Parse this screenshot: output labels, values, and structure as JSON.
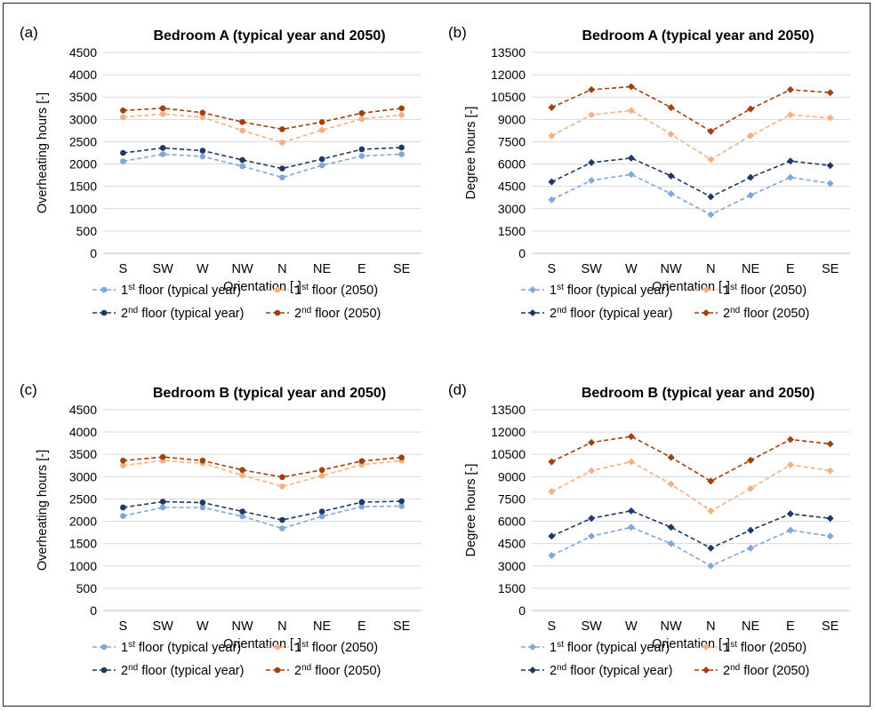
{
  "colors": {
    "floor1_typical": "#7fa7dc",
    "floor1_2050": "#f4b183",
    "floor2_typical": "#1f3864",
    "floor2_2050": "#a0410d",
    "grid": "#d9d9d9",
    "axis": "#bfbfbf"
  },
  "chart_data": [
    {
      "type": "line",
      "panel_label": "(a)",
      "title": "Bedroom A (typical year and 2050)",
      "xlabel": "Orientation [-]",
      "ylabel": "Overheating hours [-]",
      "categories": [
        "S",
        "SW",
        "W",
        "NW",
        "N",
        "NE",
        "E",
        "SE"
      ],
      "ylim": [
        0,
        4500
      ],
      "yticks": [
        0,
        500,
        1000,
        1500,
        2000,
        2500,
        3000,
        3500,
        4000,
        4500
      ],
      "grid": true,
      "marker": "circle",
      "legend_position": "bottom",
      "series": [
        {
          "name": "1st floor (typical year)",
          "name_parts": [
            "1",
            "st",
            " floor (typical year)"
          ],
          "color_key": "floor1_typical",
          "values": [
            2060,
            2220,
            2170,
            1950,
            1700,
            1970,
            2180,
            2220
          ]
        },
        {
          "name": "1st floor (2050)",
          "name_parts": [
            "1",
            "st",
            " floor (2050)"
          ],
          "color_key": "floor1_2050",
          "values": [
            3050,
            3120,
            3050,
            2750,
            2480,
            2760,
            3010,
            3100
          ]
        },
        {
          "name": "2nd floor (typical year)",
          "name_parts": [
            "2",
            "nd",
            " floor (typical year)"
          ],
          "color_key": "floor2_typical",
          "values": [
            2250,
            2360,
            2300,
            2090,
            1900,
            2110,
            2330,
            2370
          ]
        },
        {
          "name": "2nd floor (2050)",
          "name_parts": [
            "2",
            "nd",
            " floor (2050)"
          ],
          "color_key": "floor2_2050",
          "values": [
            3200,
            3250,
            3150,
            2940,
            2780,
            2940,
            3140,
            3250
          ]
        }
      ]
    },
    {
      "type": "line",
      "panel_label": "(b)",
      "title": "Bedroom A (typical year and 2050)",
      "xlabel": "Orientation [-]",
      "ylabel": "Degree hours [-]",
      "categories": [
        "S",
        "SW",
        "W",
        "NW",
        "N",
        "NE",
        "E",
        "SE"
      ],
      "ylim": [
        0,
        13500
      ],
      "yticks": [
        0,
        1500,
        3000,
        4500,
        6000,
        7500,
        9000,
        10500,
        12000,
        13500
      ],
      "grid": true,
      "marker": "diamond",
      "legend_position": "bottom",
      "series": [
        {
          "name": "1st floor (typical year)",
          "name_parts": [
            "1",
            "st",
            " floor (typical year)"
          ],
          "color_key": "floor1_typical",
          "values": [
            3600,
            4900,
            5300,
            4000,
            2600,
            3900,
            5100,
            4700
          ]
        },
        {
          "name": "1st floor (2050)",
          "name_parts": [
            "1",
            "st",
            " floor (2050)"
          ],
          "color_key": "floor1_2050",
          "values": [
            7900,
            9300,
            9600,
            8000,
            6300,
            7900,
            9300,
            9100
          ]
        },
        {
          "name": "2nd floor (typical year)",
          "name_parts": [
            "2",
            "nd",
            " floor (typical year)"
          ],
          "color_key": "floor2_typical",
          "values": [
            4800,
            6100,
            6400,
            5200,
            3800,
            5100,
            6200,
            5900
          ]
        },
        {
          "name": "2nd floor (2050)",
          "name_parts": [
            "2",
            "nd",
            " floor (2050)"
          ],
          "color_key": "floor2_2050",
          "values": [
            9800,
            11000,
            11200,
            9800,
            8200,
            9700,
            11000,
            10800
          ]
        }
      ]
    },
    {
      "type": "line",
      "panel_label": "(c)",
      "title": "Bedroom B (typical year and 2050)",
      "xlabel": "Orientation [-]",
      "ylabel": "Overheating hours [-]",
      "categories": [
        "S",
        "SW",
        "W",
        "NW",
        "N",
        "NE",
        "E",
        "SE"
      ],
      "ylim": [
        0,
        4500
      ],
      "yticks": [
        0,
        500,
        1000,
        1500,
        2000,
        2500,
        3000,
        3500,
        4000,
        4500
      ],
      "grid": true,
      "marker": "circle",
      "legend_position": "bottom",
      "series": [
        {
          "name": "1st floor (typical year)",
          "name_parts": [
            "1",
            "st",
            " floor (typical year)"
          ],
          "color_key": "floor1_typical",
          "values": [
            2120,
            2310,
            2310,
            2110,
            1840,
            2110,
            2330,
            2340
          ]
        },
        {
          "name": "1st floor (2050)",
          "name_parts": [
            "1",
            "st",
            " floor (2050)"
          ],
          "color_key": "floor1_2050",
          "values": [
            3250,
            3360,
            3300,
            3030,
            2780,
            3020,
            3270,
            3360
          ]
        },
        {
          "name": "2nd floor (typical year)",
          "name_parts": [
            "2",
            "nd",
            " floor (typical year)"
          ],
          "color_key": "floor2_typical",
          "values": [
            2310,
            2440,
            2420,
            2220,
            2030,
            2220,
            2430,
            2450
          ]
        },
        {
          "name": "2nd floor (2050)",
          "name_parts": [
            "2",
            "nd",
            " floor (2050)"
          ],
          "color_key": "floor2_2050",
          "values": [
            3360,
            3440,
            3360,
            3150,
            2990,
            3150,
            3350,
            3430
          ]
        }
      ]
    },
    {
      "type": "line",
      "panel_label": "(d)",
      "title": "Bedroom B (typical year and 2050)",
      "xlabel": "Orientation [-]",
      "ylabel": "Degree hours [-]",
      "categories": [
        "S",
        "SW",
        "W",
        "NW",
        "N",
        "NE",
        "E",
        "SE"
      ],
      "ylim": [
        0,
        13500
      ],
      "yticks": [
        0,
        1500,
        3000,
        4500,
        6000,
        7500,
        9000,
        10500,
        12000,
        13500
      ],
      "grid": true,
      "marker": "diamond",
      "legend_position": "bottom",
      "series": [
        {
          "name": "1st floor (typical year)",
          "name_parts": [
            "1",
            "st",
            " floor (typical year)"
          ],
          "color_key": "floor1_typical",
          "values": [
            3700,
            5000,
            5600,
            4500,
            3000,
            4200,
            5400,
            5000
          ]
        },
        {
          "name": "1st floor (2050)",
          "name_parts": [
            "1",
            "st",
            " floor (2050)"
          ],
          "color_key": "floor1_2050",
          "values": [
            8000,
            9400,
            10000,
            8500,
            6700,
            8200,
            9800,
            9400
          ]
        },
        {
          "name": "2nd floor (typical year)",
          "name_parts": [
            "2",
            "nd",
            " floor (typical year)"
          ],
          "color_key": "floor2_typical",
          "values": [
            5000,
            6200,
            6700,
            5600,
            4200,
            5400,
            6500,
            6200
          ]
        },
        {
          "name": "2nd floor (2050)",
          "name_parts": [
            "2",
            "nd",
            " floor (2050)"
          ],
          "color_key": "floor2_2050",
          "values": [
            10000,
            11300,
            11700,
            10300,
            8700,
            10100,
            11500,
            11200
          ]
        }
      ]
    }
  ]
}
